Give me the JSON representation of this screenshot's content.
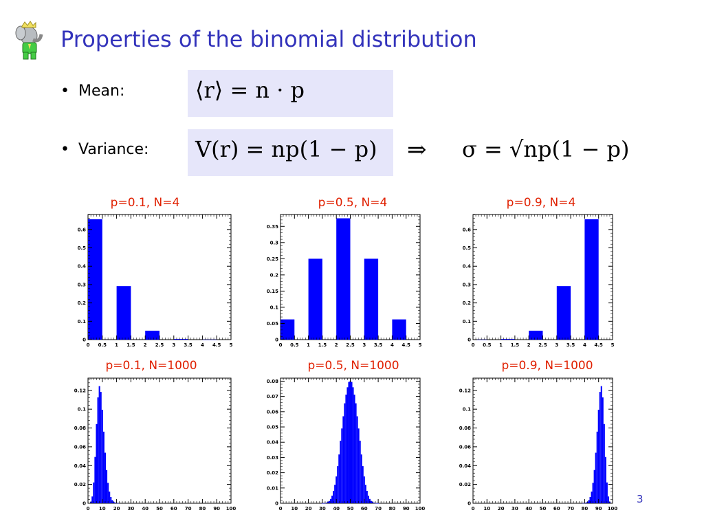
{
  "slide": {
    "title": "Properties of the binomial distribution",
    "bullets": {
      "mean_label": "Mean:",
      "variance_label": "Variance:"
    },
    "formulas": {
      "mean": "⟨r⟩ = n · p",
      "variance": "V(r) = np(1 − p)",
      "implies": "⇒",
      "sigma": "σ = √np(1 − p)"
    },
    "page_number": "3",
    "colors": {
      "title": "#3333bb",
      "panel_title": "#e02000",
      "bars": "#0000ff",
      "formula_box": "#e6e6fa"
    }
  },
  "chart_data": [
    {
      "type": "bar",
      "title": "p=0.1, N=4",
      "x": [
        0,
        1,
        2,
        3,
        4
      ],
      "values": [
        0.6561,
        0.2916,
        0.0486,
        0.0036,
        0.0001
      ],
      "xlim": [
        0,
        5
      ],
      "ylim": [
        0,
        0.6818
      ],
      "xticks": [
        "0",
        "0.5",
        "1",
        "1.5",
        "2",
        "2.5",
        "3",
        "3.5",
        "4",
        "4.5",
        "5"
      ],
      "yticks": [
        "0",
        "0.1",
        "0.2",
        "0.3",
        "0.4",
        "0.5",
        "0.6"
      ]
    },
    {
      "type": "bar",
      "title": "p=0.5, N=4",
      "x": [
        0,
        1,
        2,
        3,
        4
      ],
      "values": [
        0.0625,
        0.25,
        0.375,
        0.25,
        0.0625
      ],
      "xlim": [
        0,
        5
      ],
      "ylim": [
        0,
        0.3867
      ],
      "xticks": [
        "0",
        "0.5",
        "1",
        "1.5",
        "2",
        "2.5",
        "3",
        "3.5",
        "4",
        "4.5",
        "5"
      ],
      "yticks": [
        "0",
        "0.05",
        "0.1",
        "0.15",
        "0.2",
        "0.25",
        "0.3",
        "0.35"
      ]
    },
    {
      "type": "bar",
      "title": "p=0.9, N=4",
      "x": [
        0,
        1,
        2,
        3,
        4
      ],
      "values": [
        0.0001,
        0.0036,
        0.0486,
        0.2916,
        0.6561
      ],
      "xlim": [
        0,
        5
      ],
      "ylim": [
        0,
        0.6818
      ],
      "xticks": [
        "0",
        "0.5",
        "1",
        "1.5",
        "2",
        "2.5",
        "3",
        "3.5",
        "4",
        "4.5",
        "5"
      ],
      "yticks": [
        "0",
        "0.1",
        "0.2",
        "0.3",
        "0.4",
        "0.5",
        "0.6"
      ]
    },
    {
      "type": "bar",
      "title": "p=0.1, N=1000",
      "x": [
        0,
        1,
        2,
        3,
        4,
        5,
        6,
        7,
        8,
        9,
        10,
        11,
        12,
        13,
        14,
        15,
        16,
        17,
        18,
        19,
        20,
        21,
        22,
        23,
        24,
        25,
        26,
        27,
        28,
        29,
        30
      ],
      "values": [
        0,
        0.0002,
        0.0016,
        0.0072,
        0.0221,
        0.0492,
        0.0842,
        0.1125,
        0.1245,
        0.1183,
        0.0994,
        0.0761,
        0.0537,
        0.0353,
        0.0217,
        0.0124,
        0.0066,
        0.0033,
        0.0016,
        0.0007,
        0.0003,
        0.0001,
        0,
        0,
        0,
        0,
        0,
        0,
        0,
        0,
        0
      ],
      "xlim": [
        0,
        100
      ],
      "ylim": [
        0,
        0.133
      ],
      "xticks": [
        "0",
        "10",
        "20",
        "30",
        "40",
        "50",
        "60",
        "70",
        "80",
        "90",
        "100"
      ],
      "yticks": [
        "0",
        "0.02",
        "0.04",
        "0.06",
        "0.08",
        "0.1",
        "0.12"
      ]
    },
    {
      "type": "bar",
      "title": "p=0.5, N=1000",
      "x": [
        30,
        31,
        32,
        33,
        34,
        35,
        36,
        37,
        38,
        39,
        40,
        41,
        42,
        43,
        44,
        45,
        46,
        47,
        48,
        49,
        50,
        51,
        52,
        53,
        54,
        55,
        56,
        57,
        58,
        59,
        60,
        61,
        62,
        63,
        64,
        65,
        66,
        67,
        68,
        69,
        70
      ],
      "values": [
        3e-05,
        6e-05,
        0.0001,
        0.0004,
        0.001,
        0.0015,
        0.0028,
        0.005,
        0.0081,
        0.0121,
        0.0176,
        0.0243,
        0.032,
        0.041,
        0.049,
        0.057,
        0.0655,
        0.0712,
        0.076,
        0.0795,
        0.08,
        0.0795,
        0.076,
        0.0712,
        0.0655,
        0.057,
        0.049,
        0.041,
        0.032,
        0.0243,
        0.0176,
        0.0121,
        0.0081,
        0.005,
        0.0028,
        0.0015,
        0.001,
        0.0004,
        0.0001,
        6e-05,
        3e-05
      ],
      "xlim": [
        0,
        100
      ],
      "ylim": [
        0,
        0.082
      ],
      "xticks": [
        "0",
        "10",
        "20",
        "30",
        "40",
        "50",
        "60",
        "70",
        "80",
        "90",
        "100"
      ],
      "yticks": [
        "0",
        "0.01",
        "0.02",
        "0.03",
        "0.04",
        "0.05",
        "0.06",
        "0.07",
        "0.08"
      ]
    },
    {
      "type": "bar",
      "title": "p=0.9, N=1000",
      "x": [
        70,
        71,
        72,
        73,
        74,
        75,
        76,
        77,
        78,
        79,
        80,
        81,
        82,
        83,
        84,
        85,
        86,
        87,
        88,
        89,
        90,
        91,
        92,
        93,
        94,
        95,
        96,
        97,
        98,
        99,
        100
      ],
      "values": [
        0,
        0,
        0,
        0,
        0,
        0,
        0,
        0,
        0,
        0.0001,
        0.0003,
        0.0007,
        0.0016,
        0.0033,
        0.0066,
        0.0124,
        0.0217,
        0.0353,
        0.0537,
        0.0761,
        0.0994,
        0.1183,
        0.1245,
        0.1125,
        0.0842,
        0.0492,
        0.0221,
        0.0072,
        0.0016,
        0.0002,
        0
      ],
      "xlim": [
        0,
        100
      ],
      "ylim": [
        0,
        0.133
      ],
      "xticks": [
        "0",
        "10",
        "20",
        "30",
        "40",
        "50",
        "60",
        "70",
        "80",
        "90",
        "100"
      ],
      "yticks": [
        "0",
        "0.02",
        "0.04",
        "0.06",
        "0.08",
        "0.1",
        "0.12"
      ]
    }
  ]
}
